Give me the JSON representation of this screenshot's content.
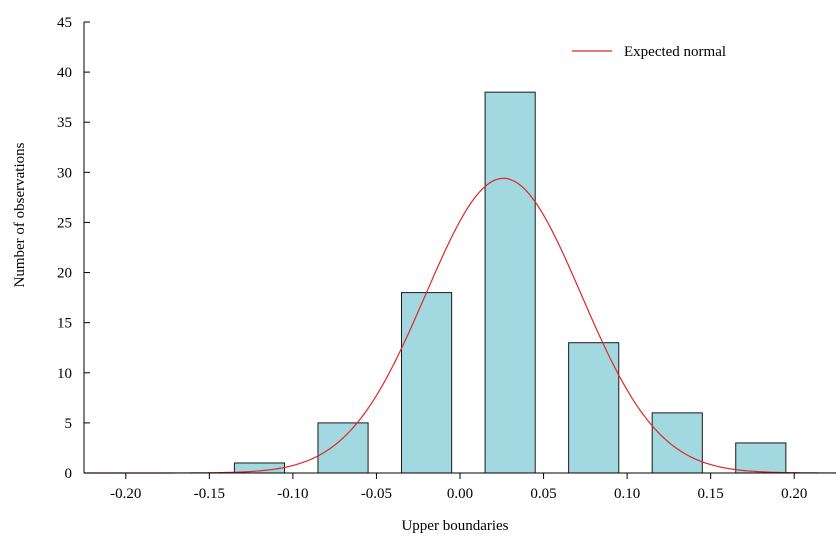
{
  "chart_data": {
    "type": "bar",
    "xlabel": "Upper boundaries",
    "ylabel": "Number of observations",
    "xlim": [
      -0.225,
      0.225
    ],
    "ylim": [
      0,
      45
    ],
    "x_ticks": [
      "-0.20",
      "-0.15",
      "-0.10",
      "-0.05",
      "0.00",
      "0.05",
      "0.10",
      "0.15",
      "0.20"
    ],
    "y_ticks": [
      "0",
      "5",
      "10",
      "15",
      "20",
      "25",
      "30",
      "35",
      "40",
      "45"
    ],
    "bars": [
      {
        "x_start": -0.135,
        "x_end": -0.105,
        "value": 1
      },
      {
        "x_start": -0.085,
        "x_end": -0.055,
        "value": 5
      },
      {
        "x_start": -0.035,
        "x_end": -0.005,
        "value": 18
      },
      {
        "x_start": 0.015,
        "x_end": 0.045,
        "value": 38
      },
      {
        "x_start": 0.065,
        "x_end": 0.095,
        "value": 13
      },
      {
        "x_start": 0.115,
        "x_end": 0.145,
        "value": 6
      },
      {
        "x_start": 0.165,
        "x_end": 0.195,
        "value": 3
      }
    ],
    "series": [
      {
        "name": "Expected normal",
        "type": "line",
        "mean": 0.026,
        "sd": 0.0465,
        "peak": 29.4
      }
    ],
    "legend": {
      "position": "top-right"
    },
    "grid": false,
    "colors": {
      "bar_fill": "#a2d8e0",
      "bar_stroke": "#1a1a1a",
      "curve": "#e0262a"
    }
  }
}
